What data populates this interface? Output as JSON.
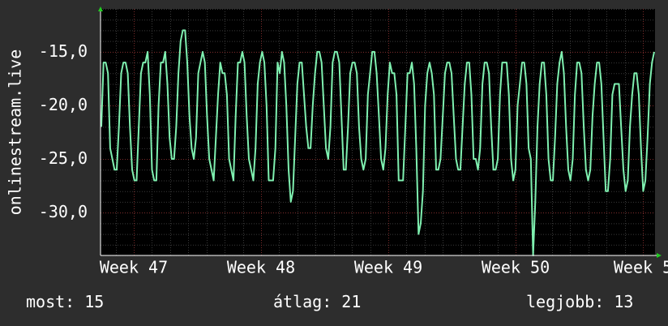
{
  "chart_data": {
    "type": "line",
    "ylabel": "onlinestream.live",
    "ylim": [
      -34,
      -11
    ],
    "y_ticks": [
      -15,
      -20,
      -25,
      -30
    ],
    "y_tick_labels": [
      "-15,0",
      "-20,0",
      "-25,0",
      "-30,0"
    ],
    "x_tick_labels": [
      "Week 47",
      "Week 48",
      "Week 49",
      "Week 50",
      "Week 5"
    ],
    "grid": true,
    "series": [
      {
        "color": "#7ff0b0",
        "values": [
          -22,
          -16,
          -16,
          -17,
          -24,
          -25,
          -26,
          -26,
          -22,
          -17,
          -16,
          -16,
          -17,
          -22,
          -26,
          -27,
          -27,
          -22,
          -17,
          -16,
          -16,
          -15,
          -19,
          -26,
          -27,
          -27,
          -20,
          -16,
          -16,
          -15,
          -18,
          -23,
          -25,
          -25,
          -22,
          -17,
          -14,
          -13,
          -13,
          -16,
          -21,
          -24,
          -25,
          -23,
          -17,
          -16,
          -15,
          -16,
          -21,
          -25,
          -26,
          -27,
          -23,
          -19,
          -16,
          -17,
          -17,
          -19,
          -25,
          -26,
          -27,
          -21,
          -16,
          -16,
          -15,
          -16,
          -21,
          -25,
          -26,
          -27,
          -24,
          -18,
          -16,
          -15,
          -16,
          -20,
          -27,
          -27,
          -27,
          -24,
          -16,
          -17,
          -15,
          -16,
          -20,
          -26,
          -29,
          -28,
          -23,
          -18,
          -16,
          -16,
          -19,
          -22,
          -24,
          -24,
          -20,
          -17,
          -15,
          -15,
          -16,
          -20,
          -24,
          -25,
          -22,
          -16,
          -15,
          -15,
          -16,
          -21,
          -26,
          -26,
          -22,
          -17,
          -16,
          -16,
          -17,
          -22,
          -25,
          -26,
          -25,
          -19,
          -17,
          -15,
          -15,
          -17,
          -21,
          -25,
          -26,
          -24,
          -19,
          -16,
          -17,
          -17,
          -19,
          -27,
          -27,
          -27,
          -22,
          -17,
          -17,
          -16,
          -18,
          -24,
          -32,
          -31,
          -28,
          -20,
          -17,
          -16,
          -17,
          -19,
          -26,
          -26,
          -25,
          -21,
          -17,
          -16,
          -16,
          -17,
          -21,
          -25,
          -26,
          -26,
          -22,
          -18,
          -16,
          -16,
          -19,
          -25,
          -25,
          -26,
          -24,
          -18,
          -16,
          -16,
          -17,
          -22,
          -26,
          -26,
          -25,
          -19,
          -16,
          -16,
          -16,
          -19,
          -25,
          -27,
          -26,
          -20,
          -18,
          -16,
          -16,
          -18,
          -24,
          -25,
          -34,
          -29,
          -22,
          -18,
          -16,
          -16,
          -19,
          -25,
          -27,
          -27,
          -23,
          -18,
          -16,
          -15,
          -17,
          -22,
          -26,
          -27,
          -25,
          -19,
          -16,
          -16,
          -17,
          -22,
          -26,
          -27,
          -26,
          -21,
          -18,
          -16,
          -16,
          -18,
          -23,
          -28,
          -28,
          -25,
          -19,
          -18,
          -18,
          -18,
          -22,
          -26,
          -28,
          -27,
          -22,
          -19,
          -17,
          -17,
          -19,
          -24,
          -28,
          -27,
          -23,
          -18,
          -16,
          -15
        ]
      }
    ]
  },
  "stats": {
    "now": "most: 15",
    "avg": "átlag: 21",
    "best": "legjobb: 13"
  }
}
